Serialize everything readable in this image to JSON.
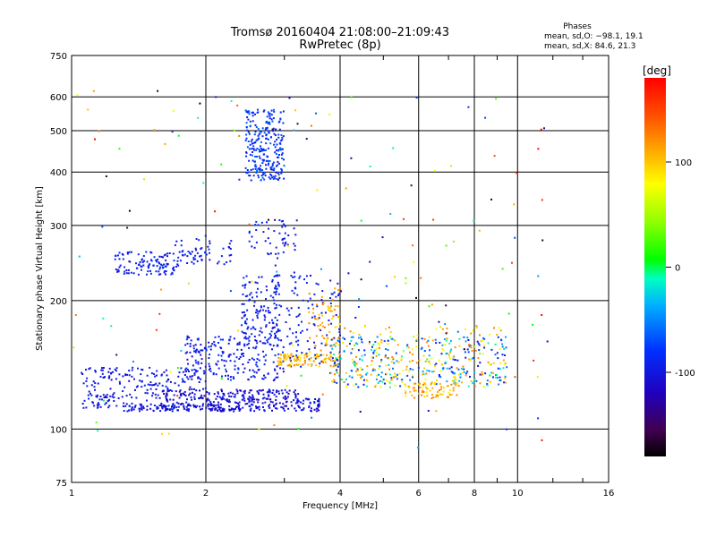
{
  "chart_data": {
    "type": "scatter",
    "title": "Tromsø 20160404 21:08:00–21:09:43",
    "subtitle": "RwPretec (8p)",
    "xlabel": "Frequency [MHz]",
    "ylabel": "Stationary phase Virtual Height [km]",
    "x_scale": "log",
    "y_scale": "log",
    "xlim": [
      1,
      16
    ],
    "ylim": [
      75,
      750
    ],
    "xticks": [
      1,
      2,
      4,
      6,
      8,
      10,
      16
    ],
    "yticks": [
      75,
      100,
      200,
      300,
      400,
      500,
      600,
      750
    ],
    "grid": true,
    "phase_box": {
      "heading": "Phases",
      "line_o": "mean, sd,O: −98.1, 19.1",
      "line_x": "mean, sd,X:  84.6, 21.3"
    },
    "colorbar": {
      "label": "[deg]",
      "range": [
        -180,
        180
      ],
      "ticks": [
        100,
        0,
        -100
      ]
    },
    "clusters": [
      {
        "f": [
          1.05,
          2.0
        ],
        "h": [
          112,
          140
        ],
        "phase": [
          -115,
          -85
        ],
        "n": 220
      },
      {
        "f": [
          1.3,
          2.2
        ],
        "h": [
          110,
          115
        ],
        "phase": [
          -120,
          -90
        ],
        "n": 120
      },
      {
        "f": [
          2.0,
          3.6
        ],
        "h": [
          110,
          118
        ],
        "phase": [
          -125,
          -90
        ],
        "n": 160
      },
      {
        "f": [
          1.6,
          3.2
        ],
        "h": [
          117,
          124
        ],
        "phase": [
          -130,
          -90
        ],
        "n": 140
      },
      {
        "f": [
          1.8,
          3.0
        ],
        "h": [
          130,
          165
        ],
        "phase": [
          -115,
          -80
        ],
        "n": 220
      },
      {
        "f": [
          2.4,
          2.95
        ],
        "h": [
          160,
          230
        ],
        "phase": [
          -110,
          -80
        ],
        "n": 140
      },
      {
        "f": [
          2.45,
          3.0
        ],
        "h": [
          380,
          560
        ],
        "phase": [
          -100,
          -60
        ],
        "n": 260
      },
      {
        "f": [
          1.25,
          1.75
        ],
        "h": [
          230,
          260
        ],
        "phase": [
          -110,
          -80
        ],
        "n": 110
      },
      {
        "f": [
          1.7,
          2.3
        ],
        "h": [
          240,
          280
        ],
        "phase": [
          -110,
          -80
        ],
        "n": 60
      },
      {
        "f": [
          2.5,
          3.2
        ],
        "h": [
          250,
          310
        ],
        "phase": [
          -110,
          -80
        ],
        "n": 50
      },
      {
        "f": [
          3.0,
          4.0
        ],
        "h": [
          140,
          230
        ],
        "phase": [
          -110,
          -80
        ],
        "n": 110
      },
      {
        "f": [
          2.9,
          4.0
        ],
        "h": [
          140,
          150
        ],
        "phase": [
          80,
          130
        ],
        "n": 110
      },
      {
        "f": [
          3.8,
          9.5
        ],
        "h": [
          125,
          165
        ],
        "phase": [
          -110,
          0
        ],
        "n": 260
      },
      {
        "f": [
          3.8,
          9.5
        ],
        "h": [
          125,
          175
        ],
        "phase": [
          70,
          130
        ],
        "n": 210
      },
      {
        "f": [
          5.5,
          7.5
        ],
        "h": [
          118,
          130
        ],
        "phase": [
          80,
          130
        ],
        "n": 70
      },
      {
        "f": [
          3.4,
          4.0
        ],
        "h": [
          150,
          215
        ],
        "phase": [
          90,
          130
        ],
        "n": 60
      },
      {
        "f": [
          1.0,
          12.0
        ],
        "h": [
          90,
          620
        ],
        "phase": [
          -180,
          180
        ],
        "n": 170
      }
    ]
  }
}
